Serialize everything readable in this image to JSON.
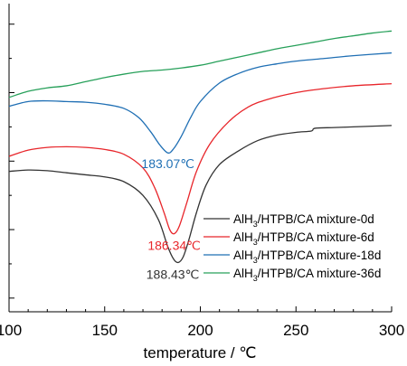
{
  "chart_data": {
    "type": "line",
    "xlabel": "temperature / ℃",
    "ylabel": "",
    "xlim": [
      100,
      300
    ],
    "x_ticks": [
      "100",
      "150",
      "200",
      "250",
      "300"
    ],
    "y_ticks_labeled": false,
    "grid": false,
    "legend_placement": "bottom-right",
    "series": [
      {
        "name": "AlH3/HTPB/CA mixture-0d",
        "legend_base": "AlH",
        "legend_sub": "3",
        "legend_rest": "/HTPB/CA mixture-0d",
        "color": "#333333",
        "peak_label": "188.43℃",
        "points": [
          [
            100,
            -1.5
          ],
          [
            110,
            -1.3
          ],
          [
            120,
            -1.4
          ],
          [
            130,
            -1.7
          ],
          [
            140,
            -2.0
          ],
          [
            150,
            -2.3
          ],
          [
            160,
            -3.0
          ],
          [
            170,
            -5.0
          ],
          [
            178,
            -8.5
          ],
          [
            183,
            -12.5
          ],
          [
            186,
            -14.3
          ],
          [
            188.43,
            -14.8
          ],
          [
            191,
            -14.0
          ],
          [
            194,
            -11.5
          ],
          [
            198,
            -7.5
          ],
          [
            203,
            -3.5
          ],
          [
            210,
            -0.5
          ],
          [
            220,
            1.5
          ],
          [
            230,
            3.0
          ],
          [
            240,
            3.8
          ],
          [
            250,
            4.2
          ],
          [
            258,
            4.4
          ],
          [
            260,
            4.8
          ],
          [
            270,
            4.9
          ],
          [
            280,
            5.0
          ],
          [
            290,
            5.1
          ],
          [
            300,
            5.2
          ]
        ]
      },
      {
        "name": "AlH3/HTPB/CA mixture-6d",
        "legend_base": "AlH",
        "legend_sub": "3",
        "legend_rest": "/HTPB/CA mixture-6d",
        "color": "#e8262b",
        "peak_label": "186.34℃",
        "points": [
          [
            100,
            0.7
          ],
          [
            110,
            1.6
          ],
          [
            120,
            2.0
          ],
          [
            130,
            2.1
          ],
          [
            140,
            2.0
          ],
          [
            150,
            1.7
          ],
          [
            160,
            1.0
          ],
          [
            170,
            -1.0
          ],
          [
            176,
            -3.8
          ],
          [
            181,
            -7.5
          ],
          [
            184,
            -10.0
          ],
          [
            186.34,
            -10.6
          ],
          [
            189,
            -9.5
          ],
          [
            193,
            -6.0
          ],
          [
            198,
            -1.5
          ],
          [
            205,
            2.5
          ],
          [
            215,
            5.8
          ],
          [
            225,
            7.9
          ],
          [
            235,
            9.0
          ],
          [
            250,
            10.0
          ],
          [
            265,
            10.6
          ],
          [
            280,
            11.0
          ],
          [
            300,
            11.3
          ]
        ]
      },
      {
        "name": "AlH3/HTPB/CA mixture-18d",
        "legend_base": "AlH",
        "legend_sub": "3",
        "legend_rest": "/HTPB/CA mixture-18d",
        "color": "#1f6fb4",
        "peak_label": "183.07℃",
        "points": [
          [
            100,
            8.0
          ],
          [
            110,
            8.7
          ],
          [
            120,
            8.8
          ],
          [
            130,
            8.7
          ],
          [
            140,
            8.6
          ],
          [
            150,
            8.3
          ],
          [
            160,
            7.7
          ],
          [
            168,
            6.3
          ],
          [
            174,
            4.3
          ],
          [
            179,
            2.3
          ],
          [
            183.07,
            1.2
          ],
          [
            186,
            1.8
          ],
          [
            190,
            3.6
          ],
          [
            195,
            6.4
          ],
          [
            200,
            8.7
          ],
          [
            210,
            11.4
          ],
          [
            220,
            12.8
          ],
          [
            230,
            13.7
          ],
          [
            240,
            14.2
          ],
          [
            250,
            14.6
          ],
          [
            265,
            15.0
          ],
          [
            280,
            15.4
          ],
          [
            300,
            15.8
          ]
        ]
      },
      {
        "name": "AlH3/HTPB/CA mixture-36d",
        "legend_base": "AlH",
        "legend_sub": "3",
        "legend_rest": "/HTPB/CA mixture-36d",
        "color": "#27a05a",
        "peak_label": "",
        "points": [
          [
            100,
            9.3
          ],
          [
            110,
            10.2
          ],
          [
            120,
            10.7
          ],
          [
            130,
            11.0
          ],
          [
            140,
            11.6
          ],
          [
            150,
            12.2
          ],
          [
            160,
            12.7
          ],
          [
            170,
            13.1
          ],
          [
            180,
            13.3
          ],
          [
            190,
            13.6
          ],
          [
            200,
            14.0
          ],
          [
            210,
            14.6
          ],
          [
            220,
            15.2
          ],
          [
            230,
            15.8
          ],
          [
            240,
            16.4
          ],
          [
            250,
            16.9
          ],
          [
            260,
            17.4
          ],
          [
            270,
            17.9
          ],
          [
            280,
            18.3
          ],
          [
            290,
            18.7
          ],
          [
            300,
            19.0
          ]
        ]
      }
    ]
  }
}
